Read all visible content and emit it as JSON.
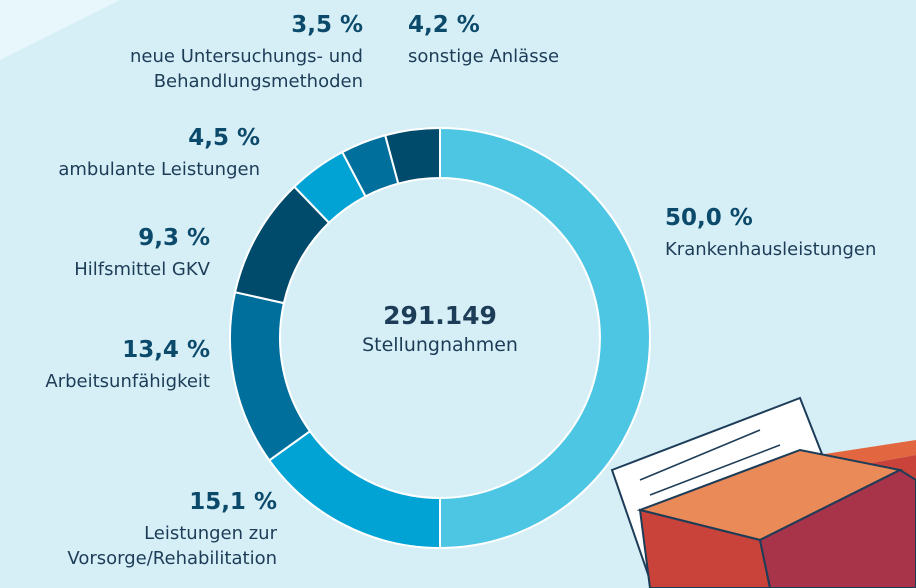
{
  "chart_data": {
    "type": "donut",
    "center_title": "291.149",
    "center_subtitle": "Stellungnahmen",
    "categories": [
      "Krankenhausleistungen",
      "Leistungen zur Vorsorge/Rehabilitation",
      "Arbeitsunfähigkeit",
      "Hilfsmittel GKV",
      "ambulante Leistungen",
      "neue Untersuchungs- und Behandlungsmethoden",
      "sonstige Anlässe"
    ],
    "values": [
      50.0,
      15.1,
      13.4,
      9.3,
      4.5,
      3.5,
      4.2
    ],
    "value_labels": [
      "50,0 %",
      "15,1 %",
      "13,4 %",
      "9,3 %",
      "4,5 %",
      "3,5 %",
      "4,2 %"
    ],
    "colors": [
      "#4cc6e3",
      "#00a3d4",
      "#006f9c",
      "#004a6c",
      "#00a3d4",
      "#006f9c",
      "#004a6c"
    ]
  }
}
